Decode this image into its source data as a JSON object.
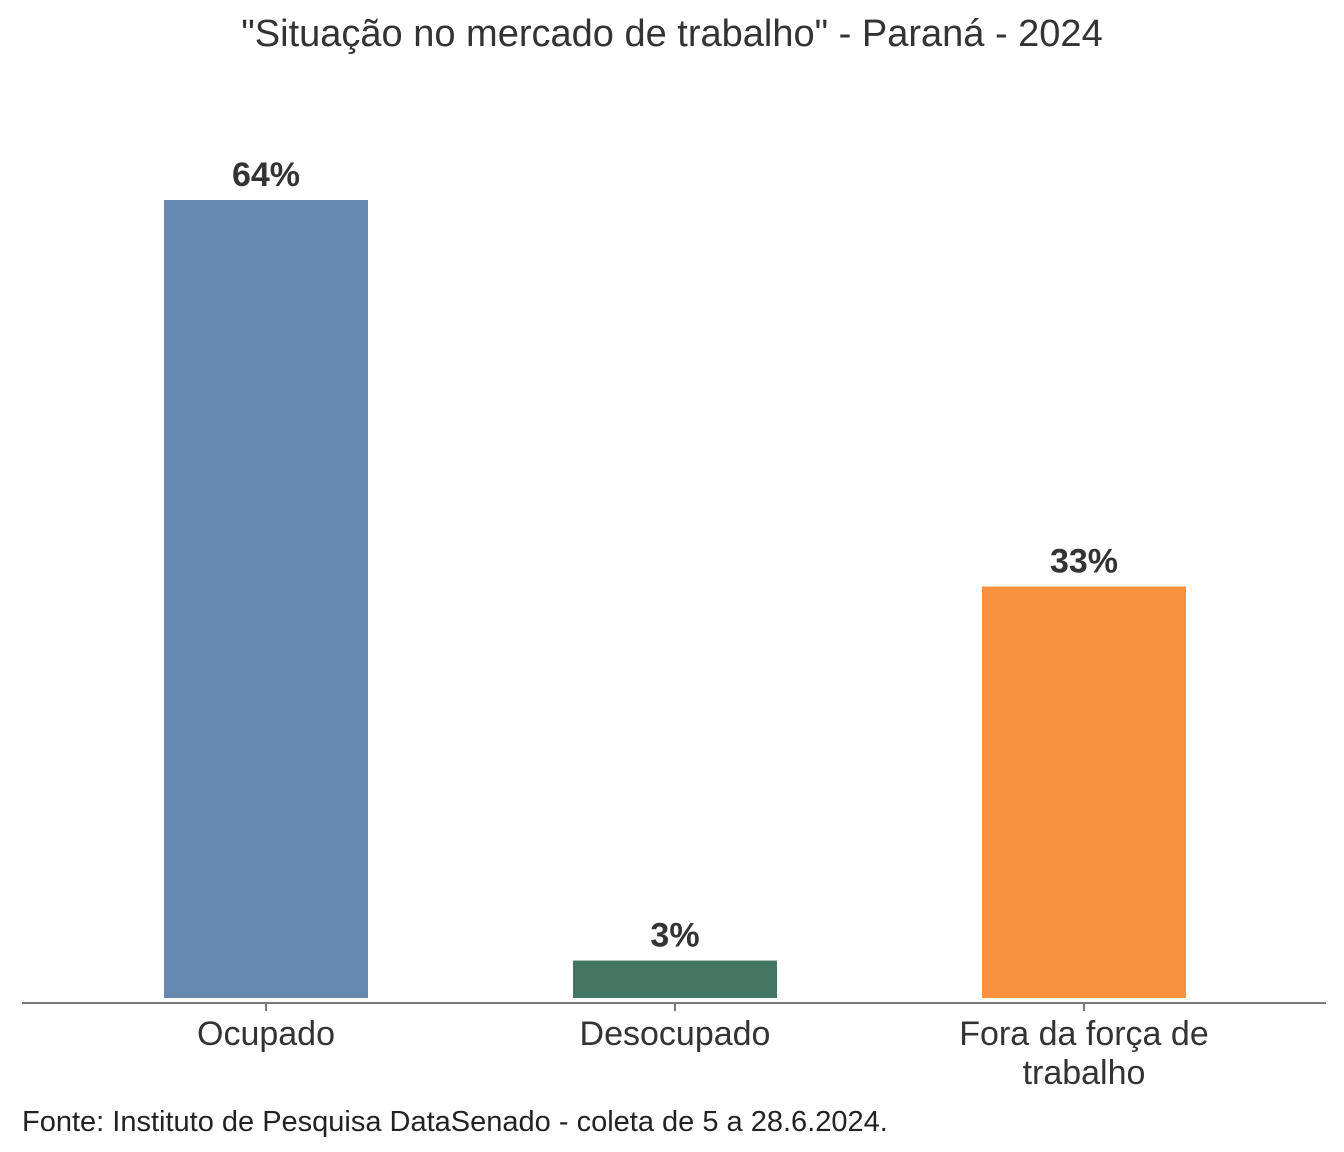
{
  "chart_data": {
    "type": "bar",
    "title": "\"Situação no mercado de trabalho\" - Paraná - 2024",
    "categories": [
      "Ocupado",
      "Desocupado",
      "Fora da força de trabalho"
    ],
    "category_lines": [
      [
        "Ocupado"
      ],
      [
        "Desocupado"
      ],
      [
        "Fora da força de",
        "trabalho"
      ]
    ],
    "values": [
      64,
      3,
      33
    ],
    "data_labels": [
      "64%",
      "3%",
      "33%"
    ],
    "colors": [
      "#6688b0",
      "#437563",
      "#fa913e"
    ],
    "ylim": [
      0,
      64
    ],
    "grid": false,
    "legend": "none",
    "source": "Fonte: Instituto de Pesquisa DataSenado - coleta de 5 a 28.6.2024."
  }
}
